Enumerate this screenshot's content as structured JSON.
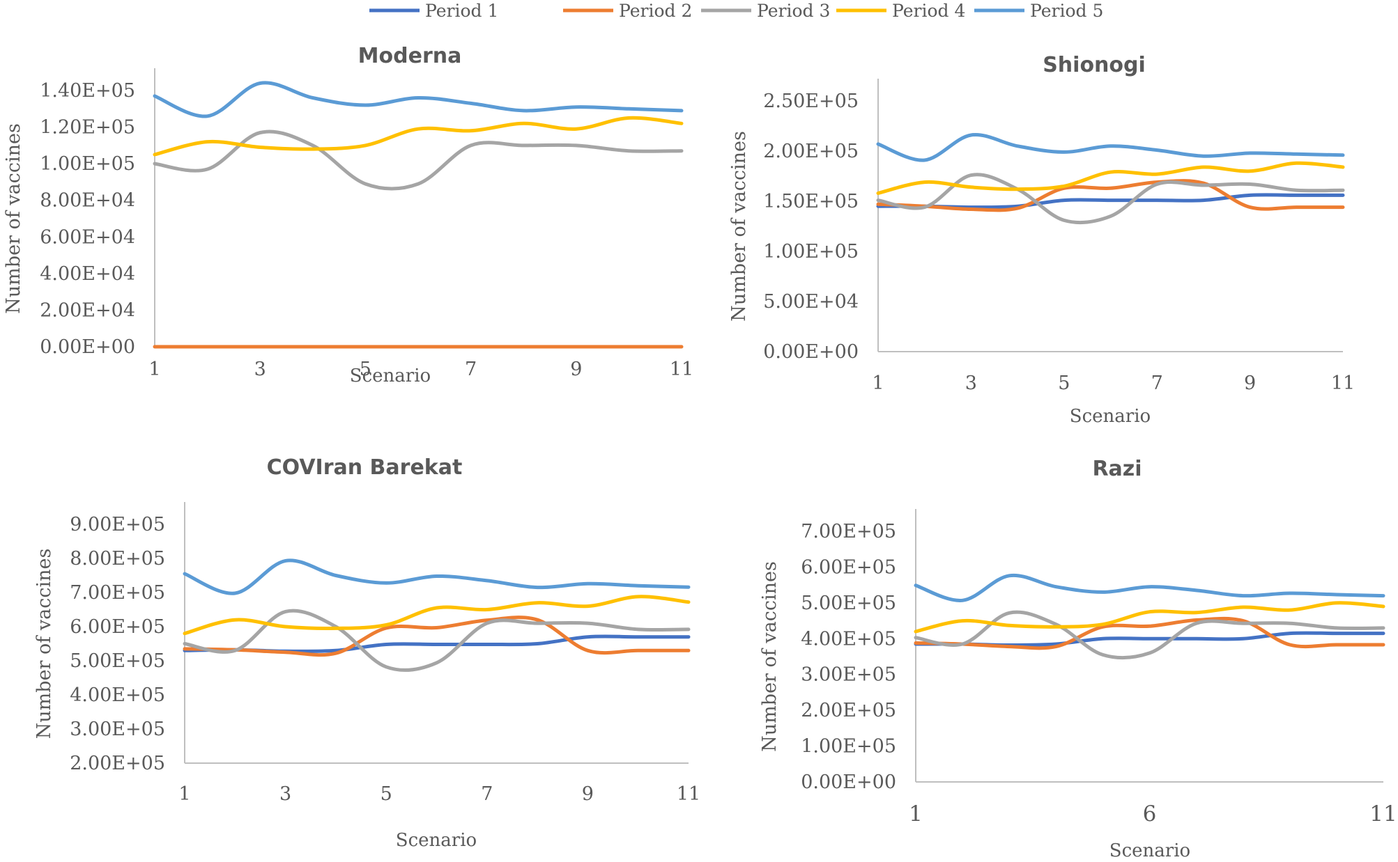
{
  "legend": [
    {
      "name": "Period 1",
      "color": "#4472C4"
    },
    {
      "name": "Period 2",
      "color": "#ED7D31"
    },
    {
      "name": "Period 3",
      "color": "#A5A5A5"
    },
    {
      "name": "Period 4",
      "color": "#FFC000"
    },
    {
      "name": "Period 5",
      "color": "#5B9BD5"
    }
  ],
  "chart_data": [
    {
      "type": "line",
      "title": "Moderna",
      "xlabel": "Scenario",
      "ylabel": "Number of vaccines",
      "x": [
        1,
        2,
        3,
        4,
        5,
        6,
        7,
        8,
        9,
        10,
        11
      ],
      "x_ticks": [
        "1",
        "3",
        "5",
        "7",
        "9",
        "11"
      ],
      "y_ticks": [
        "0.00E+00",
        "2.00E+04",
        "4.00E+04",
        "6.00E+04",
        "8.00E+04",
        "1.00E+05",
        "1.20E+05",
        "1.40E+05"
      ],
      "ylim": [
        0,
        150000
      ],
      "grid": false,
      "series": [
        {
          "name": "Period 2",
          "values": [
            0,
            0,
            0,
            0,
            0,
            0,
            0,
            0,
            0,
            0,
            0
          ]
        },
        {
          "name": "Period 3",
          "values": [
            100000,
            97000,
            117000,
            110000,
            89000,
            89000,
            110000,
            110000,
            110000,
            107000,
            107000
          ]
        },
        {
          "name": "Period 4",
          "values": [
            105000,
            112000,
            109000,
            108000,
            110000,
            119000,
            118000,
            122000,
            119000,
            125000,
            122000
          ]
        },
        {
          "name": "Period 5",
          "values": [
            137000,
            126000,
            144000,
            136000,
            132000,
            136000,
            133000,
            129000,
            131000,
            130000,
            129000
          ]
        }
      ]
    },
    {
      "type": "line",
      "title": "Shionogi",
      "xlabel": "Scenario",
      "ylabel": "Number of vaccines",
      "x": [
        1,
        2,
        3,
        4,
        5,
        6,
        7,
        8,
        9,
        10,
        11
      ],
      "x_ticks": [
        "1",
        "3",
        "5",
        "7",
        "9",
        "11"
      ],
      "y_ticks": [
        "0.00E+00",
        "5.00E+04",
        "1.00E+05",
        "1.50E+05",
        "2.00E+05",
        "2.50E+05"
      ],
      "ylim": [
        0,
        250000
      ],
      "grid": false,
      "series": [
        {
          "name": "Period 1",
          "values": [
            145000,
            145000,
            144000,
            145000,
            151000,
            151000,
            151000,
            151000,
            156000,
            156000,
            156000
          ]
        },
        {
          "name": "Period 2",
          "values": [
            147000,
            145000,
            142000,
            143000,
            163000,
            163000,
            169000,
            168000,
            144000,
            144000,
            144000
          ]
        },
        {
          "name": "Period 3",
          "values": [
            151000,
            144000,
            176000,
            162000,
            131000,
            135000,
            167000,
            166000,
            167000,
            161000,
            161000
          ]
        },
        {
          "name": "Period 4",
          "values": [
            158000,
            169000,
            164000,
            162000,
            165000,
            179000,
            177000,
            184000,
            180000,
            188000,
            184000
          ]
        },
        {
          "name": "Period 5",
          "values": [
            207000,
            191000,
            216000,
            205000,
            199000,
            205000,
            201000,
            195000,
            198000,
            197000,
            196000
          ]
        }
      ]
    },
    {
      "type": "line",
      "title": "COVIran Barekat",
      "xlabel": "Scenario",
      "ylabel": "Number of vaccines",
      "x": [
        1,
        2,
        3,
        4,
        5,
        6,
        7,
        8,
        9,
        10,
        11
      ],
      "x_ticks": [
        "1",
        "3",
        "5",
        "7",
        "9",
        "11"
      ],
      "y_ticks": [
        "2.00E+05",
        "3.00E+05",
        "4.00E+05",
        "5.00E+05",
        "6.00E+05",
        "7.00E+05",
        "8.00E+05",
        "9.00E+05"
      ],
      "ylim": [
        200000,
        900000
      ],
      "grid": false,
      "series": [
        {
          "name": "Period 1",
          "values": [
            530000,
            532000,
            528000,
            530000,
            548000,
            548000,
            548000,
            550000,
            570000,
            570000,
            570000
          ]
        },
        {
          "name": "Period 2",
          "values": [
            535000,
            532000,
            525000,
            522000,
            596000,
            597000,
            619000,
            620000,
            530000,
            530000,
            530000
          ]
        },
        {
          "name": "Period 3",
          "values": [
            550000,
            530000,
            644000,
            600000,
            482000,
            494000,
            610000,
            610000,
            610000,
            592000,
            592000
          ]
        },
        {
          "name": "Period 4",
          "values": [
            580000,
            620000,
            600000,
            595000,
            605000,
            655000,
            650000,
            670000,
            660000,
            688000,
            672000
          ]
        },
        {
          "name": "Period 5",
          "values": [
            755000,
            698000,
            793000,
            750000,
            728000,
            748000,
            735000,
            715000,
            726000,
            720000,
            716000
          ]
        }
      ]
    },
    {
      "type": "line",
      "title": "Razi",
      "xlabel": "Scenario",
      "ylabel": "Number of vaccines",
      "x": [
        1,
        2,
        3,
        4,
        5,
        6,
        7,
        8,
        9,
        10,
        11
      ],
      "x_ticks": [
        "1",
        "6",
        "11"
      ],
      "y_ticks": [
        "0.00E+00",
        "1.00E+05",
        "2.00E+05",
        "3.00E+05",
        "4.00E+05",
        "5.00E+05",
        "6.00E+05",
        "7.00E+05"
      ],
      "ylim": [
        0,
        700000
      ],
      "grid": false,
      "series": [
        {
          "name": "Period 1",
          "values": [
            385000,
            385000,
            382000,
            385000,
            400000,
            400000,
            400000,
            400000,
            415000,
            415000,
            415000
          ]
        },
        {
          "name": "Period 2",
          "values": [
            388000,
            385000,
            378000,
            378000,
            433000,
            435000,
            452000,
            450000,
            383000,
            383000,
            383000
          ]
        },
        {
          "name": "Period 3",
          "values": [
            403000,
            385000,
            472000,
            440000,
            355000,
            360000,
            443000,
            443000,
            443000,
            430000,
            430000
          ]
        },
        {
          "name": "Period 4",
          "values": [
            420000,
            450000,
            437000,
            433000,
            440000,
            475000,
            473000,
            488000,
            480000,
            500000,
            490000
          ]
        },
        {
          "name": "Period 5",
          "values": [
            549000,
            507000,
            576000,
            545000,
            530000,
            545000,
            535000,
            520000,
            527000,
            523000,
            520000
          ]
        }
      ]
    }
  ]
}
